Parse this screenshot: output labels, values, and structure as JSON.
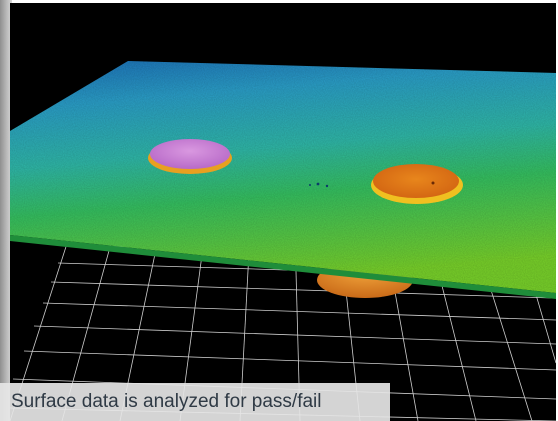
{
  "caption": {
    "text": "Surface data is analyzed for pass/fail"
  },
  "scene": {
    "background_color": "#000000",
    "grid_color": "#cfcfcf",
    "surface_colors": [
      "#1e86c8",
      "#2fb0b0",
      "#36c25a",
      "#7ed321"
    ],
    "features": [
      {
        "name": "left-pad",
        "color": "#cc7ad8",
        "rim_color": "#e8a020"
      },
      {
        "name": "right-pad",
        "color": "#e07a1a",
        "rim_color": "#f0c020"
      },
      {
        "name": "lower-pad",
        "color": "#e8952a",
        "rim_color": "#f3c34a"
      }
    ]
  }
}
